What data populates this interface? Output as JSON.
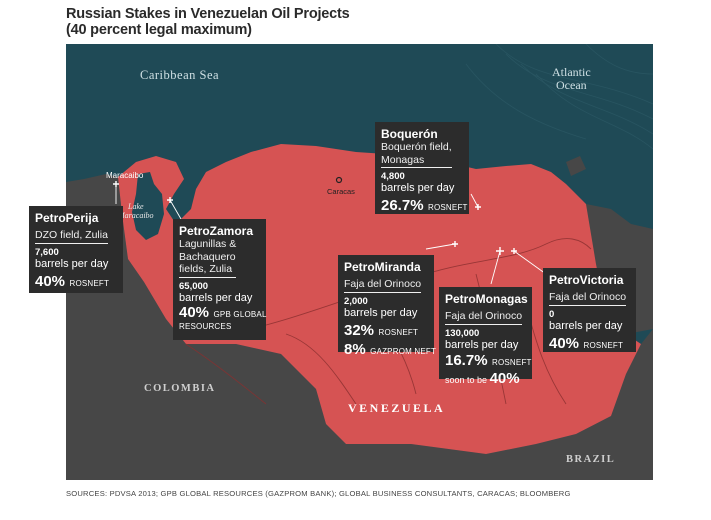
{
  "title": {
    "line1": "Russian Stakes in Venezuelan Oil Projects",
    "line2": "(40 percent legal maximum)"
  },
  "map_labels": {
    "caribbean": "Caribbean Sea",
    "atlantic_1": "Atlantic",
    "atlantic_2": "Ocean",
    "maracaibo_city": "Maracaibo",
    "lake_1": "Lake",
    "lake_2": "Maracaibo",
    "caracas": "Caracas",
    "colombia": "COLOMBIA",
    "venezuela": "VENEZUELA",
    "brazil": "BRAZIL"
  },
  "colors": {
    "sea": "#1f4a56",
    "land_other": "#474747",
    "venezuela": "#d65353",
    "callout_bg": "#2c2c2c",
    "text_light": "#ffffff"
  },
  "projects": {
    "boqueron": {
      "name": "Boquerón",
      "field_1": "Boquerón field,",
      "field_2": "Monagas",
      "production": "4,800",
      "unit": "barrels per day",
      "stake_pct": "26.7%",
      "stake_holder": "ROSNEFT"
    },
    "perija": {
      "name": "PetroPerija",
      "field_1": "DZO field, Zulia",
      "production": "7,600",
      "unit": "barrels per day",
      "stake_pct": "40%",
      "stake_holder": "ROSNEFT"
    },
    "zamora": {
      "name": "PetroZamora",
      "field_1": "Lagunillas &",
      "field_2": "Bachaquero",
      "field_3": "fields, Zulia",
      "production": "65,000",
      "unit": "barrels per day",
      "stake_pct": "40%",
      "stake_holder_1": "GPB GLOBAL",
      "stake_holder_2": "RESOURCES"
    },
    "miranda": {
      "name": "PetroMiranda",
      "field_1": "Faja del Orinoco",
      "production": "2,000",
      "unit": "barrels per day",
      "stake1_pct": "32%",
      "stake1_holder": "ROSNEFT",
      "stake2_pct": "8%",
      "stake2_holder": "GAZPROM NEFT"
    },
    "monagas": {
      "name": "PetroMonagas",
      "field_1": "Faja del Orinoco",
      "production": "130,000",
      "unit": "barrels per day",
      "stake_pct": "16.7%",
      "stake_holder": "ROSNEFT",
      "note_text": "soon to be",
      "note_pct": "40%"
    },
    "victoria": {
      "name": "PetroVictoria",
      "field_1": "Faja del Orinoco",
      "production": "0",
      "unit": "barrels per day",
      "stake_pct": "40%",
      "stake_holder": "ROSNEFT"
    }
  },
  "source": "SOURCES: PDVSA 2013; GPB GLOBAL RESOURCES (GAZPROM BANK); GLOBAL BUSINESS CONSULTANTS, CARACAS; BLOOMBERG"
}
